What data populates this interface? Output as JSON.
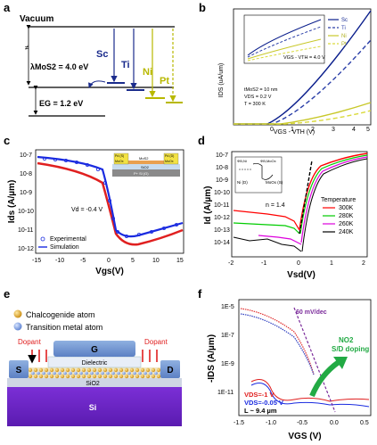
{
  "panels": {
    "a": {
      "label": "a",
      "vacuum": "Vacuum",
      "lambda": "λMoS2 = 4.0 eV",
      "eg": "EG = 1.2 eV",
      "metals": [
        "Sc",
        "Ti",
        "Ni",
        "Pt"
      ]
    },
    "b": {
      "label": "b",
      "ylabel": "IDS (uA/um)",
      "xlabel": "VGS - VTH (V)",
      "legend": [
        "Sc",
        "Ti",
        "Ni",
        "Pt"
      ],
      "inset_text": "VGS - VTH = 4.0 V",
      "params": [
        "tMoS2 = 10 nm",
        "VDS = 0.2 V",
        "T = 300 K"
      ],
      "xticks": [
        "0",
        "1",
        "2",
        "3",
        "4",
        "5"
      ],
      "colors": {
        "Sc": "#0a1e8c",
        "Ti": "#2b3fa8",
        "Ni": "#c8c82a",
        "Pt": "#dada3c"
      }
    },
    "c": {
      "label": "c",
      "ylabel": "Ids (A/µm)",
      "xlabel": "Vgs(V)",
      "vd": "Vd = -0.4 V",
      "legend": [
        "Experimental",
        "Simulation"
      ],
      "xticks": [
        "-15",
        "-10",
        "-5",
        "0",
        "5",
        "10",
        "15"
      ],
      "yticks": [
        "10-7",
        "10-8",
        "10-9",
        "10-10",
        "10-11",
        "10-12"
      ],
      "inset": [
        "Pd (S)",
        "MoOx",
        "MoS2",
        "Pd (D)",
        "MoOx",
        "SiO2",
        "P+ Si (G)"
      ]
    },
    "d": {
      "label": "d",
      "ylabel": "Id (A/µm)",
      "xlabel": "Vsd(V)",
      "yticks": [
        "10-7",
        "10-8",
        "10-9",
        "10-10",
        "10-11",
        "10-12",
        "10-13",
        "10-14"
      ],
      "xticks": [
        "-2",
        "-1",
        "0",
        "1",
        "2"
      ],
      "n_label": "n = 1.4",
      "legend_title": "Temperature",
      "legend": [
        "300K",
        "280K",
        "260K",
        "240K"
      ],
      "legend_colors": [
        "#ff0000",
        "#00cc00",
        "#dd00dd",
        "#000000"
      ],
      "inset": [
        "ΦB,Ni",
        "ΦB,MoOx",
        "Ni (D)",
        "MoOx (S)"
      ]
    },
    "e": {
      "label": "e",
      "legend": [
        "Chalcogenide atom",
        "Transition metal atom"
      ],
      "gate": "G",
      "dielectric": "Dielectric",
      "dopant": "Dopant",
      "source": "S",
      "drain": "D",
      "sio2": "SiO2",
      "si": "Si"
    },
    "f": {
      "label": "f",
      "ylabel": "-IDS (A/µm)",
      "xlabel": "VGS (V)",
      "yticks": [
        "1E-5",
        "1E-7",
        "1E-9",
        "1E-11"
      ],
      "xticks": [
        "-1.5",
        "-1.0",
        "-0.5",
        "0.0",
        "0.5"
      ],
      "slope": "60 mV/dec",
      "arrow_text": [
        "NO2",
        "S/D doping"
      ],
      "legend": [
        "VDS=-1 V",
        "VDS=-0.05 V",
        "L ~ 9.4 µm"
      ]
    }
  }
}
